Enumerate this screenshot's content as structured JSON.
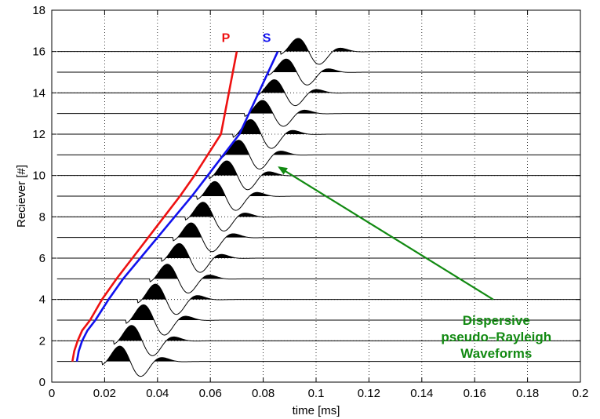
{
  "chart_data": {
    "type": "line",
    "title": "",
    "xlabel": "time [ms]",
    "ylabel": "Reciever [#]",
    "xlim": [
      0,
      0.2
    ],
    "ylim": [
      0,
      18
    ],
    "x_ticks": [
      0,
      0.02,
      0.04,
      0.06,
      0.08,
      0.1,
      0.12,
      0.14,
      0.16,
      0.18,
      0.2
    ],
    "x_tick_labels": [
      "0",
      "0.02",
      "0.04",
      "0.06",
      "0.08",
      "0.1",
      "0.12",
      "0.14",
      "0.16",
      "0.18",
      "0.2"
    ],
    "y_ticks": [
      0,
      2,
      4,
      6,
      8,
      10,
      12,
      14,
      16,
      18
    ],
    "y_tick_labels": [
      "0",
      "2",
      "4",
      "6",
      "8",
      "10",
      "12",
      "14",
      "16",
      "18"
    ],
    "grid": true,
    "receivers": [
      1,
      2,
      3,
      4,
      5,
      6,
      7,
      8,
      9,
      10,
      11,
      12,
      13,
      14,
      15,
      16
    ],
    "waveform_onsets_ms": [
      0.019,
      0.0235,
      0.028,
      0.0325,
      0.037,
      0.0415,
      0.046,
      0.0505,
      0.055,
      0.0595,
      0.064,
      0.0685,
      0.073,
      0.0775,
      0.082,
      0.0865
    ],
    "series": [
      {
        "name": "P",
        "color": "#ee1111",
        "x": [
          0.0078,
          0.0085,
          0.0098,
          0.0115,
          0.0145,
          0.019,
          0.0245,
          0.0305,
          0.0365,
          0.0425,
          0.0485,
          0.054,
          0.059,
          0.064,
          0.07
        ],
        "y": [
          1,
          1.5,
          2,
          2.5,
          3,
          4,
          5,
          6,
          7,
          8,
          9,
          10,
          11,
          12,
          16
        ]
      },
      {
        "name": "S",
        "color": "#1111ee",
        "x": [
          0.0095,
          0.0102,
          0.0115,
          0.0135,
          0.0165,
          0.0215,
          0.027,
          0.0335,
          0.04,
          0.0465,
          0.053,
          0.059,
          0.065,
          0.071,
          0.0855
        ],
        "y": [
          1,
          1.5,
          2,
          2.5,
          3,
          4,
          5,
          6,
          7,
          8,
          9,
          10,
          11,
          12,
          16
        ]
      }
    ],
    "annotations": [
      {
        "lines": [
          "Dispersive",
          "pseudo–Rayleigh",
          "Waveforms"
        ],
        "color": "#128a12",
        "arrow_from": [
          0.167,
          4
        ],
        "arrow_to": [
          0.086,
          10.4
        ]
      }
    ]
  }
}
